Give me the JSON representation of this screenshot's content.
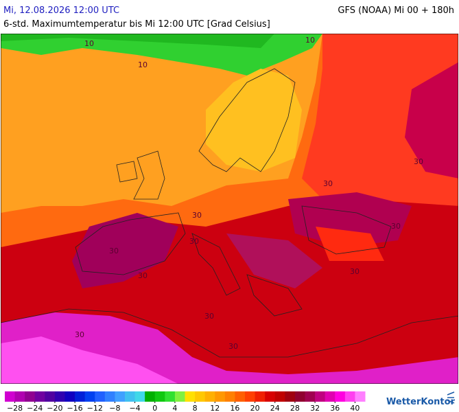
{
  "header": {
    "date": "Mi, 12.08.2026 12:00 UTC",
    "model": "GFS (NOAA) Mi 00 + 180h",
    "title": "6-std. Maximumtemperatur bis Mi 12:00 UTC [Grad Celsius]"
  },
  "map": {
    "contour_labels": [
      "10",
      "10",
      "10",
      "30",
      "30",
      "30",
      "30",
      "30",
      "30",
      "30",
      "30",
      "30",
      "30",
      "30"
    ]
  },
  "colorbar": {
    "range": [
      -30,
      42
    ],
    "colors": [
      "#d000d0",
      "#b000b0",
      "#900090",
      "#7000a0",
      "#5000a0",
      "#3000b0",
      "#1000c0",
      "#0020d8",
      "#0040f0",
      "#2060ff",
      "#3080ff",
      "#40a0ff",
      "#40c0f0",
      "#40d8e8",
      "#00b000",
      "#10c810",
      "#30e030",
      "#80f040",
      "#ffe000",
      "#ffc800",
      "#ffb000",
      "#ff9800",
      "#ff8000",
      "#ff6000",
      "#ff4000",
      "#f02000",
      "#d80000",
      "#c00000",
      "#a00010",
      "#900030",
      "#a00050",
      "#c00080",
      "#e000b0",
      "#ff00e0",
      "#ff40f0",
      "#ff80ff"
    ],
    "ticks": [
      {
        "value": -28,
        "label": "−28"
      },
      {
        "value": -24,
        "label": "−24"
      },
      {
        "value": -20,
        "label": "−20"
      },
      {
        "value": -16,
        "label": "−16"
      },
      {
        "value": -12,
        "label": "−12"
      },
      {
        "value": -8,
        "label": "−8"
      },
      {
        "value": -4,
        "label": "−4"
      },
      0,
      4,
      8,
      12,
      16,
      20,
      24,
      28,
      32,
      36,
      40
    ]
  },
  "brand": "WetterKontor"
}
